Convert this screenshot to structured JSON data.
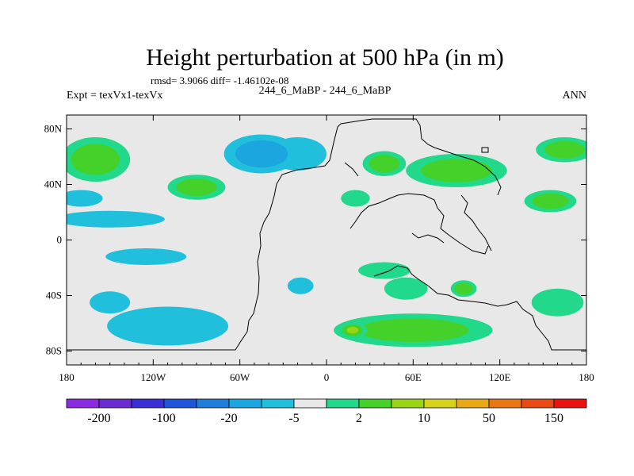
{
  "chart_data": {
    "type": "heatmap",
    "title": "Height perturbation at 500 hPa (in m)",
    "stats_line": "rmsd= 3.9066 diff= -1.46102e-08",
    "left_label": "Expt = texVx1-texVx",
    "center_label": "244_6_MaBP - 244_6_MaBP",
    "right_label": "ANN",
    "xlim": [
      -180,
      180
    ],
    "ylim": [
      -90,
      90
    ],
    "x_ticks": [
      {
        "value": -180,
        "label": "180"
      },
      {
        "value": -120,
        "label": "120W"
      },
      {
        "value": -60,
        "label": "60W"
      },
      {
        "value": 0,
        "label": "0"
      },
      {
        "value": 60,
        "label": "60E"
      },
      {
        "value": 120,
        "label": "120E"
      },
      {
        "value": 180,
        "label": "180"
      }
    ],
    "y_ticks": [
      {
        "value": 80,
        "label": "80N"
      },
      {
        "value": 40,
        "label": "40N"
      },
      {
        "value": 0,
        "label": "0"
      },
      {
        "value": -40,
        "label": "40S"
      },
      {
        "value": -80,
        "label": "80S"
      }
    ],
    "colorbar": {
      "colors": [
        "#8a2be2",
        "#6a2ccf",
        "#3a2fd6",
        "#1f55d8",
        "#1e7fd9",
        "#1ba6df",
        "#20c0dc",
        "#e8e8e8",
        "#22d88a",
        "#44d12a",
        "#9ad414",
        "#d6d21a",
        "#e8a914",
        "#e87714",
        "#e84a14",
        "#e81414"
      ],
      "labels": [
        {
          "boundary": 1,
          "text": "-200"
        },
        {
          "boundary": 3,
          "text": "-100"
        },
        {
          "boundary": 5,
          "text": "-20"
        },
        {
          "boundary": 7,
          "text": "-5"
        },
        {
          "boundary": 9,
          "text": "2"
        },
        {
          "boundary": 11,
          "text": "10"
        },
        {
          "boundary": 13,
          "text": "50"
        },
        {
          "boundary": 15,
          "text": "150"
        }
      ]
    },
    "fields": [
      {
        "level": 4,
        "lon": -160,
        "lat": 58,
        "sx": 24,
        "sy": 16
      },
      {
        "level": 4,
        "lon": -45,
        "lat": 62,
        "sx": 26,
        "sy": 14
      },
      {
        "level": 3,
        "lon": -20,
        "lat": 62,
        "sx": 20,
        "sy": 12
      },
      {
        "level": 4,
        "lon": 40,
        "lat": 55,
        "sx": 15,
        "sy": 9
      },
      {
        "level": 4,
        "lon": 90,
        "lat": 50,
        "sx": 35,
        "sy": 12
      },
      {
        "level": 4,
        "lon": 165,
        "lat": 65,
        "sx": 20,
        "sy": 9
      },
      {
        "level": 4,
        "lon": -90,
        "lat": 38,
        "sx": 20,
        "sy": 9
      },
      {
        "level": 3,
        "lon": -170,
        "lat": 30,
        "sx": 15,
        "sy": 6
      },
      {
        "level": 3,
        "lon": -150,
        "lat": 15,
        "sx": 38,
        "sy": 6
      },
      {
        "level": 3,
        "lon": -125,
        "lat": -12,
        "sx": 28,
        "sy": 6
      },
      {
        "level": 3,
        "lon": 40,
        "lat": -22,
        "sx": 18,
        "sy": 6
      },
      {
        "level": 4,
        "lon": 155,
        "lat": 28,
        "sx": 18,
        "sy": 8
      },
      {
        "level": 3,
        "lon": 20,
        "lat": 30,
        "sx": 10,
        "sy": 6
      },
      {
        "level": 3,
        "lon": -110,
        "lat": -62,
        "sx": 42,
        "sy": 14
      },
      {
        "level": 3,
        "lon": -150,
        "lat": -45,
        "sx": 14,
        "sy": 8
      },
      {
        "level": 3,
        "lon": -18,
        "lat": -33,
        "sx": 9,
        "sy": 6
      },
      {
        "level": 3,
        "lon": 55,
        "lat": -35,
        "sx": 15,
        "sy": 8
      },
      {
        "level": 3,
        "lon": 160,
        "lat": -45,
        "sx": 18,
        "sy": 10
      },
      {
        "level": 4,
        "lon": 60,
        "lat": -65,
        "sx": 55,
        "sy": 12
      },
      {
        "level": 4,
        "lon": 95,
        "lat": -35,
        "sx": 9,
        "sy": 6
      },
      {
        "level": 5,
        "lon": 18,
        "lat": -65,
        "sx": 10,
        "sy": 6
      }
    ]
  }
}
